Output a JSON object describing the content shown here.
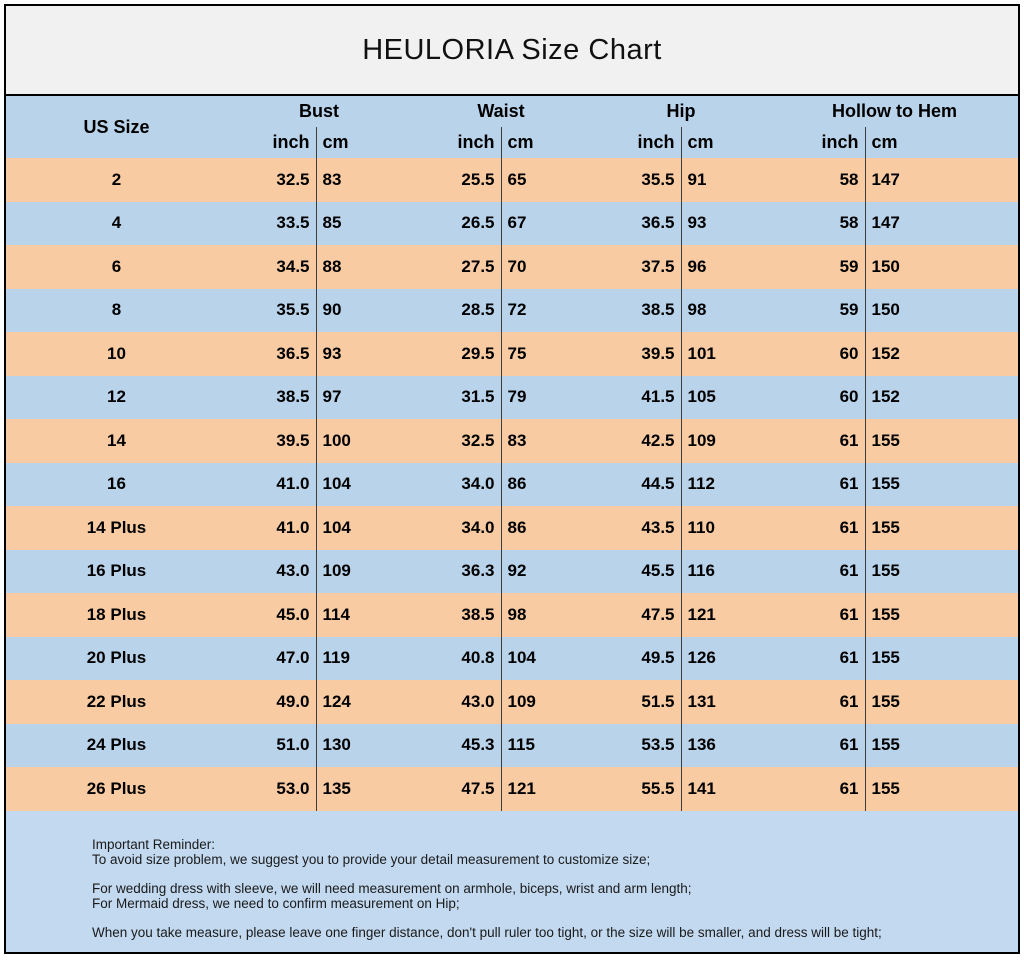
{
  "title": "HEULORIA Size Chart",
  "table": {
    "size_header": "US Size",
    "unit_inch": "inch",
    "unit_cm": "cm",
    "groups": [
      "Bust",
      "Waist",
      "Hip",
      "Hollow to Hem"
    ],
    "rows": [
      {
        "size": "2",
        "bust_in": "32.5",
        "bust_cm": "83",
        "waist_in": "25.5",
        "waist_cm": "65",
        "hip_in": "35.5",
        "hip_cm": "91",
        "hollow_in": "58",
        "hollow_cm": "147"
      },
      {
        "size": "4",
        "bust_in": "33.5",
        "bust_cm": "85",
        "waist_in": "26.5",
        "waist_cm": "67",
        "hip_in": "36.5",
        "hip_cm": "93",
        "hollow_in": "58",
        "hollow_cm": "147"
      },
      {
        "size": "6",
        "bust_in": "34.5",
        "bust_cm": "88",
        "waist_in": "27.5",
        "waist_cm": "70",
        "hip_in": "37.5",
        "hip_cm": "96",
        "hollow_in": "59",
        "hollow_cm": "150"
      },
      {
        "size": "8",
        "bust_in": "35.5",
        "bust_cm": "90",
        "waist_in": "28.5",
        "waist_cm": "72",
        "hip_in": "38.5",
        "hip_cm": "98",
        "hollow_in": "59",
        "hollow_cm": "150"
      },
      {
        "size": "10",
        "bust_in": "36.5",
        "bust_cm": "93",
        "waist_in": "29.5",
        "waist_cm": "75",
        "hip_in": "39.5",
        "hip_cm": "101",
        "hollow_in": "60",
        "hollow_cm": "152"
      },
      {
        "size": "12",
        "bust_in": "38.5",
        "bust_cm": "97",
        "waist_in": "31.5",
        "waist_cm": "79",
        "hip_in": "41.5",
        "hip_cm": "105",
        "hollow_in": "60",
        "hollow_cm": "152"
      },
      {
        "size": "14",
        "bust_in": "39.5",
        "bust_cm": "100",
        "waist_in": "32.5",
        "waist_cm": "83",
        "hip_in": "42.5",
        "hip_cm": "109",
        "hollow_in": "61",
        "hollow_cm": "155"
      },
      {
        "size": "16",
        "bust_in": "41.0",
        "bust_cm": "104",
        "waist_in": "34.0",
        "waist_cm": "86",
        "hip_in": "44.5",
        "hip_cm": "112",
        "hollow_in": "61",
        "hollow_cm": "155"
      },
      {
        "size": "14 Plus",
        "bust_in": "41.0",
        "bust_cm": "104",
        "waist_in": "34.0",
        "waist_cm": "86",
        "hip_in": "43.5",
        "hip_cm": "110",
        "hollow_in": "61",
        "hollow_cm": "155"
      },
      {
        "size": "16 Plus",
        "bust_in": "43.0",
        "bust_cm": "109",
        "waist_in": "36.3",
        "waist_cm": "92",
        "hip_in": "45.5",
        "hip_cm": "116",
        "hollow_in": "61",
        "hollow_cm": "155"
      },
      {
        "size": "18 Plus",
        "bust_in": "45.0",
        "bust_cm": "114",
        "waist_in": "38.5",
        "waist_cm": "98",
        "hip_in": "47.5",
        "hip_cm": "121",
        "hollow_in": "61",
        "hollow_cm": "155"
      },
      {
        "size": "20 Plus",
        "bust_in": "47.0",
        "bust_cm": "119",
        "waist_in": "40.8",
        "waist_cm": "104",
        "hip_in": "49.5",
        "hip_cm": "126",
        "hollow_in": "61",
        "hollow_cm": "155"
      },
      {
        "size": "22 Plus",
        "bust_in": "49.0",
        "bust_cm": "124",
        "waist_in": "43.0",
        "waist_cm": "109",
        "hip_in": "51.5",
        "hip_cm": "131",
        "hollow_in": "61",
        "hollow_cm": "155"
      },
      {
        "size": "24 Plus",
        "bust_in": "51.0",
        "bust_cm": "130",
        "waist_in": "45.3",
        "waist_cm": "115",
        "hip_in": "53.5",
        "hip_cm": "136",
        "hollow_in": "61",
        "hollow_cm": "155"
      },
      {
        "size": "26 Plus",
        "bust_in": "53.0",
        "bust_cm": "135",
        "waist_in": "47.5",
        "waist_cm": "121",
        "hip_in": "55.5",
        "hip_cm": "141",
        "hollow_in": "61",
        "hollow_cm": "155"
      }
    ]
  },
  "footer": {
    "lines": [
      "Important Reminder:",
      "To avoid size problem, we suggest you to provide your detail measurement to customize size;",
      "",
      "For wedding dress with sleeve, we will need measurement on armhole, biceps, wrist and arm length;",
      "For Mermaid dress, we need to confirm measurement on Hip;",
      "",
      "When you take measure, please leave one finger distance, don't pull ruler too tight, or the size will be smaller, and dress will be tight;"
    ]
  },
  "colors": {
    "row_blue": "#B9D3EB",
    "row_peach": "#F8CBA3",
    "footer_blue": "#C2D9F0",
    "title_bg": "#F1F1F1",
    "border": "#000000",
    "divider": "#3d3d3d"
  }
}
